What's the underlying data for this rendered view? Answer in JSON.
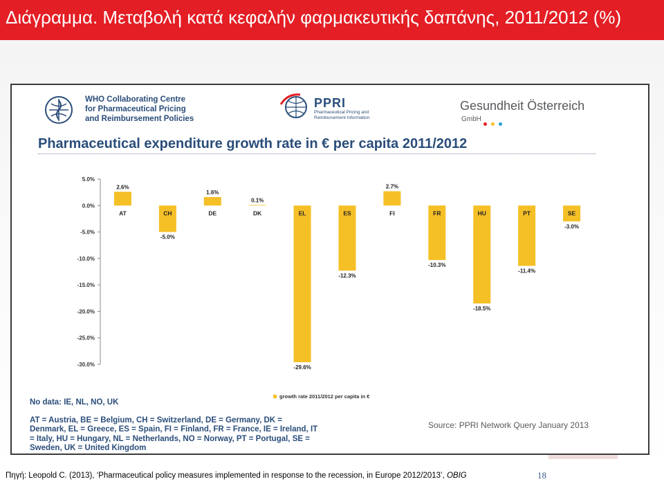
{
  "slide": {
    "title": "Διάγραμμα. Μεταβολή κατά κεφαλήν φαρμακευτικής δαπάνης, 2011/2012 (%)",
    "caption_prefix": "Πηγή: Leopold C. (2013), ‘Pharmaceutical policy measures implemented in response to the recession, in Europe 2012/2013’, ",
    "caption_publisher": "OBIG",
    "page_number": "18"
  },
  "logos": {
    "who_lines": [
      "WHO Collaborating Centre",
      "for Pharmaceutical Pricing",
      "and Reimbursement Policies"
    ],
    "ppri_name": "PPRI",
    "ppri_sub_lines": [
      "Pharmaceutical Pricing and",
      "Reimbursement Information"
    ],
    "goe_name": "Gesundheit Österreich",
    "goe_sub": "GmbH",
    "goe_dot_colors": [
      "#e31e24",
      "#f5bf26",
      "#2a9fd8"
    ]
  },
  "notes": {
    "no_data": "No data: IE, NL, NO, UK",
    "abbreviations": [
      "AT = Austria, BE = Belgium, CH = Switzerland, DE = Germany, DK =",
      "Denmark, EL = Greece, ES = Spain, FI = Finland, FR = France, IE = Ireland, IT",
      "= Italy, HU = Hungary, NL = Netherlands, NO = Norway, PT = Portugal, SE =",
      "Sweden, UK = United Kingdom"
    ],
    "source": "Source: PPRI Network Query January 2013"
  },
  "chart_data": {
    "type": "bar",
    "title": "Pharmaceutical expenditure growth rate in € per capita 2011/2012",
    "categories": [
      "AT",
      "CH",
      "DE",
      "DK",
      "EL",
      "ES",
      "FI",
      "FR",
      "HU",
      "PT",
      "SE"
    ],
    "series": [
      {
        "name": "growth rate 2011/2012 per capita in €",
        "values": [
          2.6,
          -5.0,
          1.6,
          0.1,
          -29.6,
          -12.3,
          2.7,
          -10.3,
          -18.5,
          -11.4,
          -3.0
        ],
        "labels": [
          "2.6%",
          "-5.0%",
          "1.6%",
          "0.1%",
          "-29.6%",
          "-12.3%",
          "2.7%",
          "-10.3%",
          "-18.5%",
          "-11.4%",
          "-3.0%"
        ]
      }
    ],
    "ylim": [
      -30,
      5
    ],
    "yticks": [
      5,
      0,
      -5,
      -10,
      -15,
      -20,
      -25,
      -30
    ],
    "ytick_labels": [
      "5.0%",
      "0.0%",
      "-5.0%",
      "-10.0%",
      "-15.0%",
      "-20.0%",
      "-25.0%",
      "-30.0%"
    ],
    "xlabel": "",
    "ylabel": "",
    "grid": false,
    "legend_position": "bottom-right",
    "bar_color": "#f5bf26"
  }
}
